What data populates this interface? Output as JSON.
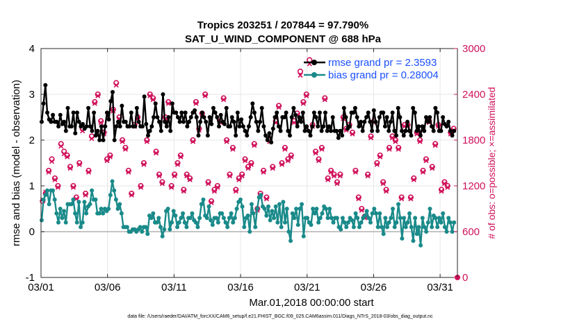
{
  "chart_data": {
    "type": "line",
    "title": "Tropics 203251 / 207844 = 97.790%",
    "subtitle": "SAT_U_WIND_COMPONENT @ 688 hPa",
    "xlabel": "Mar.01,2018 00:00:00 start",
    "ylabel": "rmse and bias (model - observation)",
    "y2label": "# of obs: o=possible; ×=assimilated",
    "footnote": "data file: /Users/raeder/DAI/ATM_forcXX/CAM6_setup/f.e21.FHIST_BGC.f09_025.CAM6assim.011/Diags_NTrS_2018-03/obs_diag_output.nc",
    "xlim": [
      0,
      31.3
    ],
    "ylim": [
      -1,
      4
    ],
    "y2lim": [
      0,
      3000
    ],
    "x_tick_values": [
      0,
      5,
      10,
      15,
      20,
      25,
      30
    ],
    "x_tick_labels": [
      "03/01",
      "03/06",
      "03/11",
      "03/16",
      "03/21",
      "03/26",
      "03/31"
    ],
    "y_ticks": [
      "-1",
      "0",
      "1",
      "2",
      "3",
      "4"
    ],
    "y2_ticks": [
      "0",
      "600",
      "1200",
      "1800",
      "2400",
      "3000"
    ],
    "colors": {
      "rmse": "#000000",
      "bias": "#1a8a8a",
      "obs": "#d0105a",
      "zero_line": "#b0b0b0",
      "grid": "#e6e6e6"
    },
    "series": [
      {
        "name": "rmse",
        "legend": "rmse grand pr = 2.3593",
        "values": [
          2.4,
          2.8,
          3.2,
          2.6,
          2.45,
          2.4,
          2.55,
          2.4,
          2.4,
          2.3,
          2.55,
          2.35,
          2.4,
          2.2,
          2.7,
          2.3,
          2.3,
          2.6,
          2.15,
          2.6,
          2.4,
          2.3,
          2.35,
          2.25,
          2.3,
          2.7,
          2.3,
          2.2,
          2.6,
          2.1,
          2.2,
          2.0,
          2.3,
          2.0,
          2.3,
          2.6,
          2.45,
          2.85,
          3.05,
          2.0,
          2.3,
          2.4,
          2.3,
          2.75,
          2.4,
          2.4,
          2.3,
          2.3,
          2.6,
          2.3,
          2.3,
          2.7,
          2.4,
          2.3,
          2.3,
          2.95,
          2.35,
          2.1,
          2.2,
          2.3,
          2.5,
          2.8,
          2.5,
          2.4,
          2.2,
          3.0,
          2.4,
          2.3,
          2.5,
          2.2,
          2.8,
          2.6,
          2.6,
          2.5,
          2.4,
          2.6,
          2.4,
          2.6,
          2.3,
          2.4,
          2.5,
          2.6,
          2.65,
          2.5,
          2.1,
          2.4,
          2.6,
          2.5,
          2.4,
          2.1,
          2.5,
          2.35,
          2.7,
          2.6,
          2.5,
          2.3,
          2.55,
          2.4,
          2.35,
          2.7,
          2.3,
          2.3,
          2.5,
          2.4,
          2.1,
          2.6,
          2.3,
          2.45,
          2.3,
          2.2,
          2.1,
          2.3,
          2.5,
          2.8,
          2.6,
          2.4,
          2.2,
          2.4,
          2.7,
          2.3,
          2.1,
          2.0,
          2.15,
          1.95,
          2.25,
          2.5,
          2.6,
          2.3,
          2.2,
          2.5,
          2.5,
          2.6,
          2.2,
          2.1,
          2.5,
          2.7,
          2.55,
          2.3,
          2.5,
          2.4,
          2.6,
          2.2,
          2.3,
          2.2,
          2.1,
          2.3,
          2.6,
          2.5,
          2.3,
          2.6,
          2.2,
          2.3,
          2.6,
          2.2,
          2.3,
          2.2,
          2.5,
          2.2,
          2.2,
          2.05,
          2.2,
          2.1,
          2.7,
          2.5,
          2.25,
          2.3,
          2.6,
          2.6,
          2.7,
          2.5,
          2.3,
          2.4,
          2.2,
          2.4,
          2.5,
          2.6,
          2.4,
          2.2,
          2.65,
          2.4,
          2.2,
          2.5,
          2.6,
          2.6,
          2.3,
          2.5,
          2.2,
          2.4,
          2.6,
          2.2,
          2.1,
          2.7,
          2.5,
          2.2,
          2.1,
          2.2,
          2.4,
          2.2,
          2.1,
          2.7,
          2.6,
          2.2,
          2.3,
          2.1,
          2.3,
          2.2,
          2.5,
          2.4,
          2.5,
          2.3,
          2.2,
          2.7,
          2.6,
          2.2,
          2.2,
          2.5,
          2.35,
          2.3,
          2.4,
          2.2,
          2.1,
          2.2
        ]
      },
      {
        "name": "bias",
        "legend": "bias grand pr = 0.28004",
        "values": [
          0.25,
          0.7,
          0.8,
          0.9,
          0.6,
          0.9,
          0.9,
          0.7,
          0.4,
          0.2,
          0.5,
          0.3,
          0.45,
          0.2,
          0.6,
          0.6,
          0.6,
          0.7,
          0.4,
          0.2,
          0.65,
          0.1,
          0.2,
          0.65,
          0.4,
          0.55,
          0.6,
          0.9,
          0.7,
          0.7,
          0.4,
          0.4,
          0.5,
          0.4,
          0.5,
          0.45,
          0.5,
          0.8,
          1.1,
          0.9,
          0.7,
          0.5,
          0.6,
          0.4,
          0.1,
          0.1,
          0.1,
          0.0,
          0.0,
          0.05,
          0.05,
          0.0,
          0.05,
          0.1,
          0.0,
          0.1,
          0.1,
          -0.05,
          0.35,
          0.3,
          0.4,
          0.2,
          0.2,
          0.3,
          0.1,
          -0.1,
          0.05,
          0.45,
          0.5,
          0.05,
          0.2,
          0.45,
          0.35,
          0.1,
          0.2,
          0.3,
          0.4,
          0.2,
          0.1,
          0.3,
          0.3,
          0.4,
          0.25,
          0.2,
          0.1,
          0.3,
          0.6,
          0.7,
          0.35,
          0.3,
          0.55,
          0.25,
          0.15,
          0.3,
          0.3,
          0.2,
          0.4,
          0.4,
          0.3,
          0.2,
          0.1,
          0.3,
          0.4,
          0.2,
          0.3,
          0.5,
          0.65,
          0.7,
          0.55,
          0.1,
          0.3,
          0.35,
          0.0,
          0.6,
          0.4,
          0.1,
          0.5,
          0.75,
          0.8,
          0.55,
          0.5,
          0.35,
          0.55,
          0.25,
          0.45,
          0.3,
          0.55,
          0.2,
          0.6,
          0.1,
          0.65,
          0.2,
          0.5,
          0.0,
          -0.2,
          0.4,
          0.3,
          0.5,
          0.15,
          0.5,
          0.6,
          -0.1,
          0.3,
          0.3,
          0.2,
          0.15,
          0.5,
          0.4,
          0.5,
          0.2,
          0.3,
          0.4,
          0.55,
          0.5,
          0.3,
          0.5,
          0.3,
          0.2,
          0.3,
          0.3,
          0.1,
          0.05,
          0.3,
          0.2,
          0.1,
          0.2,
          0.3,
          0.25,
          0.1,
          0.4,
          0.3,
          0.1,
          0.2,
          0.3,
          0.35,
          0.45,
          0.3,
          0.2,
          0.4,
          0.5,
          0.4,
          0.1,
          0.4,
          0.1,
          -0.05,
          0.3,
          0.1,
          0.2,
          0.3,
          0.5,
          0.1,
          0.2,
          0.6,
          0.3,
          -0.15,
          0.3,
          0.1,
          0.2,
          0.4,
          0.1,
          -0.2,
          0.3,
          -0.05,
          0.1,
          -0.3,
          0.3,
          0.1,
          0.0,
          0.2,
          0.5,
          0.1,
          0.35,
          0.3,
          0.1,
          0.3,
          0.2,
          0.4,
          0.1,
          0.0,
          0.3,
          0.2,
          0.0,
          0.2
        ]
      }
    ],
    "obs_possible": [
      1000,
      1100,
      1400,
      1550,
      1300,
      1200,
      1750,
      1650,
      1600,
      1450,
      1200,
      1050,
      1500,
      1950,
      1100,
      1400,
      1850,
      2300,
      2400,
      2050,
      1900,
      1550,
      1600,
      2200,
      2550,
      2100,
      1800,
      1700,
      1400,
      1100,
      2000,
      2100,
      1200,
      1500,
      1800,
      2400,
      2350,
      1650,
      1350,
      1250,
      2100,
      2300,
      1200,
      1350,
      1500,
      1600,
      1150,
      1350,
      1300,
      1800,
      2300,
      1950,
      2150,
      2400,
      1250,
      1000,
      1150,
      1200,
      2050,
      2350,
      1800,
      1350,
      1700,
      1150,
      1300,
      1350,
      1550,
      1450,
      1500,
      1750,
      900,
      1100,
      1400,
      1050,
      1800,
      1450,
      2050,
      2250,
      1500,
      1700,
      1550,
      1600,
      2050,
      2150,
      2700,
      2300,
      2400,
      2850,
      2000,
      1650,
      1550,
      1700,
      2350,
      1300,
      1400,
      1350,
      1250,
      1350,
      2100,
      1950,
      2000,
      1900,
      1400,
      1050,
      900,
      800,
      1350,
      1850,
      2050,
      1500,
      1600,
      1250,
      1150,
      1700,
      1850,
      1800,
      1700,
      1050,
      2000,
      2000,
      1050,
      1300,
      1900,
      1800,
      1400,
      1550,
      2050,
      1450,
      1750,
      2000,
      1150,
      1250,
      1200,
      1900,
      1950
    ],
    "obs_assimilated": [
      1020,
      1120,
      1380,
      1520,
      1280,
      1180,
      1720,
      1620,
      1580,
      1430,
      1180,
      1030,
      1480,
      1920,
      1080,
      1380,
      1820,
      2280,
      2380,
      2030,
      1880,
      1530,
      1580,
      2180,
      2520,
      2080,
      1780,
      1680,
      1380,
      1080,
      1980,
      2080,
      1180,
      1480,
      1780,
      2380,
      2330,
      1630,
      1330,
      1230,
      2080,
      2280,
      1180,
      1330,
      1480,
      1580,
      1130,
      1330,
      1280,
      1780,
      2280,
      1930,
      2130,
      2380,
      1230,
      980,
      1130,
      1180,
      2030,
      2330,
      1780,
      1330,
      1680,
      1130,
      1280,
      1330,
      1530,
      1430,
      1480,
      1730,
      880,
      1080,
      1380,
      1030,
      1780,
      1430,
      2030,
      2230,
      1480,
      1680,
      1530,
      1580,
      2030,
      2130,
      2650,
      2280,
      2380,
      2800,
      1980,
      1630,
      1530,
      1680,
      2330,
      1280,
      1380,
      1330,
      1230,
      1330,
      2080,
      1930,
      1980,
      1880,
      1380,
      1030,
      880,
      780,
      1330,
      1830,
      2030,
      1480,
      1580,
      1230,
      1130,
      1680,
      1830,
      1780,
      1680,
      1030,
      1980,
      1980,
      1030,
      1280,
      1880,
      1780,
      1380,
      1530,
      2030,
      1430,
      1730,
      1980,
      1130,
      1230,
      1180,
      1880,
      1930
    ]
  }
}
